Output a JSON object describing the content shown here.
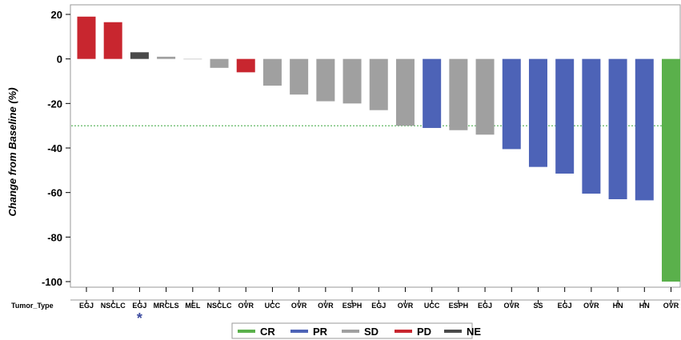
{
  "chart_data": {
    "type": "bar",
    "ylabel": "Change from Baseline (%)",
    "ylim": [
      -100,
      20
    ],
    "yticks": [
      20,
      0,
      -20,
      -40,
      -60,
      -80,
      -100
    ],
    "reference_line": {
      "value": -30,
      "style": "dotted",
      "color": "#4caf50"
    },
    "category_row_label": "Tumor_Type",
    "categories": [
      "EGJ",
      "NSCLC",
      "EGJ",
      "MRCLS",
      "MEL",
      "NSCLC",
      "OVR",
      "UCC",
      "OVR",
      "OVR",
      "ESPH",
      "EGJ",
      "OVR",
      "UCC",
      "ESPH",
      "EGJ",
      "OVR",
      "SS",
      "EGJ",
      "OVR",
      "HN",
      "HN",
      "OVR"
    ],
    "values": [
      19,
      16.5,
      3,
      1,
      0,
      -4,
      -6,
      -12,
      -16,
      -19,
      -20,
      -23,
      -30,
      -31,
      -32,
      -34,
      -40.5,
      -48.5,
      -51.5,
      -60.5,
      -63,
      -63.5,
      -100
    ],
    "response": [
      "PD",
      "PD",
      "NE",
      "SD",
      "SD",
      "SD",
      "PD",
      "SD",
      "SD",
      "SD",
      "SD",
      "SD",
      "SD",
      "PR",
      "SD",
      "SD",
      "PR",
      "PR",
      "PR",
      "PR",
      "PR",
      "PR",
      "CR"
    ],
    "annotations": [
      {
        "category_index": 2,
        "text": "*",
        "color": "#3b4a9e"
      }
    ],
    "legend": {
      "placement": "bottom",
      "entries": [
        {
          "label": "CR",
          "color": "#5ab04b"
        },
        {
          "label": "PR",
          "color": "#4d63b7"
        },
        {
          "label": "SD",
          "color": "#a0a0a0"
        },
        {
          "label": "PD",
          "color": "#c8262f"
        },
        {
          "label": "NE",
          "color": "#4a4a4a"
        }
      ]
    },
    "colors": {
      "CR": "#5ab04b",
      "PR": "#4d63b7",
      "SD": "#a0a0a0",
      "PD": "#c8262f",
      "NE": "#4a4a4a"
    }
  }
}
